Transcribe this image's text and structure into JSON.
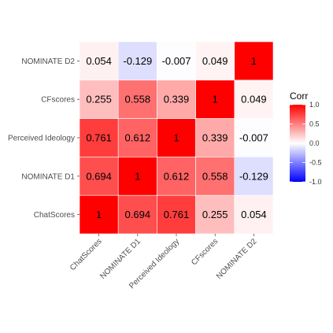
{
  "chart_data": {
    "type": "heatmap",
    "rows_top_to_bottom": [
      "NOMINATE D2",
      "CFscores",
      "Perceived Ideology",
      "NOMINATE D1",
      "ChatScores"
    ],
    "columns": [
      "ChatScores",
      "NOMINATE D1",
      "Perceived Ideology",
      "CFscores",
      "NOMINATE D2"
    ],
    "matrix": [
      [
        0.054,
        -0.129,
        -0.007,
        0.049,
        1
      ],
      [
        0.255,
        0.558,
        0.339,
        1,
        0.049
      ],
      [
        0.761,
        0.612,
        1,
        0.339,
        -0.007
      ],
      [
        0.694,
        1,
        0.612,
        0.558,
        -0.129
      ],
      [
        1,
        0.694,
        0.761,
        0.255,
        0.054
      ]
    ],
    "cell_text": [
      [
        "0.054",
        "-0.129",
        "-0.007",
        "0.049",
        "1"
      ],
      [
        "0.255",
        "0.558",
        "0.339",
        "1",
        "0.049"
      ],
      [
        "0.761",
        "0.612",
        "1",
        "0.339",
        "-0.007"
      ],
      [
        "0.694",
        "1",
        "0.612",
        "0.558",
        "-0.129"
      ],
      [
        "1",
        "0.694",
        "0.761",
        "0.255",
        "0.054"
      ]
    ],
    "legend": {
      "title": "Corr",
      "range": [
        -1,
        1
      ],
      "ticks": [
        1,
        0.5,
        0,
        -0.5,
        -1
      ],
      "tick_labels": [
        "1.0",
        "0.5",
        "0.0",
        "-0.5",
        "-1.0"
      ],
      "colors": {
        "low": "#0000ff",
        "mid": "#ffffff",
        "high": "#ff0000"
      },
      "placement": "right"
    },
    "grid": true
  }
}
